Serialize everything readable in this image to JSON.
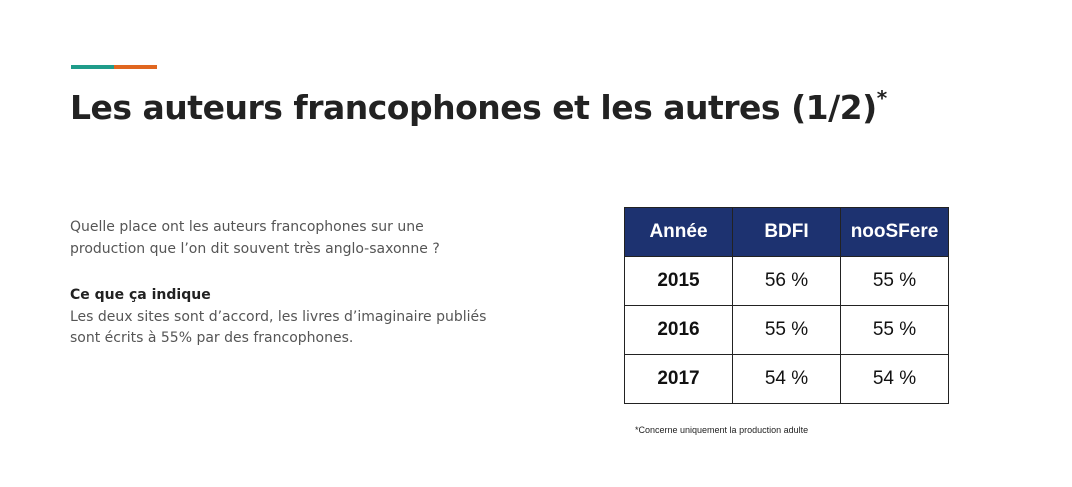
{
  "colors": {
    "accent_teal": "#1f9c8a",
    "accent_orange": "#e0661f",
    "table_header_bg": "#1d3270"
  },
  "title": {
    "text": "Les auteurs francophones et les autres (1/2)",
    "marker": "*"
  },
  "intro": {
    "question": "Quelle place ont les auteurs francophones sur une production que l’on dit souvent très anglo-saxonne ?",
    "subheading": "Ce que ça indique",
    "body": "Les deux sites sont d’accord, les livres d’imaginaire publiés sont écrits à 55% par des francophones."
  },
  "table": {
    "headers": [
      "Année",
      "BDFI",
      "nooSFere"
    ],
    "rows": [
      [
        "2015",
        "56 %",
        "55 %"
      ],
      [
        "2016",
        "55 %",
        "55 %"
      ],
      [
        "2017",
        "54 %",
        "54 %"
      ]
    ]
  },
  "footnote": "*Concerne uniquement la production adulte"
}
